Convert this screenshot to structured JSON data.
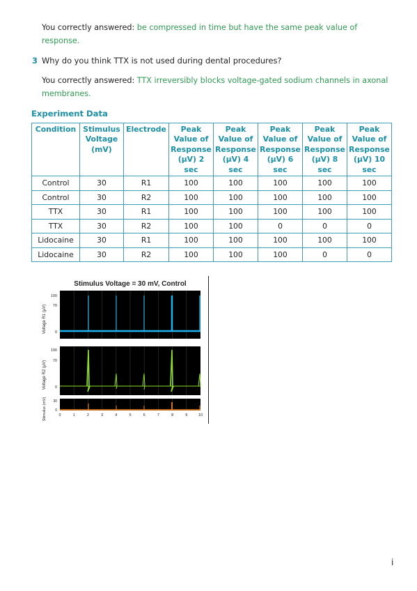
{
  "answer1": {
    "prefix": "You correctly answered: ",
    "answer_line1": "be compressed in time but have the same peak value of",
    "answer_line2": "response."
  },
  "question3": {
    "number": "3",
    "text": "Why do you think TTX is not used during dental procedures?"
  },
  "answer3": {
    "prefix": "You correctly answered: ",
    "answer_line1": "TTX irreversibly blocks voltage-gated sodium channels in axonal",
    "answer_line2": "membranes."
  },
  "section_title": "Experiment Data",
  "table": {
    "headers": [
      "Condition",
      "Stimulus Voltage (mV)",
      "Electrode",
      "Peak Value of Response (µV) 2 sec",
      "Peak Value of Response (µV) 4 sec",
      "Peak Value of Response (µV) 6 sec",
      "Peak Value of Response (µV) 8 sec",
      "Peak Value of Response (µV) 10 sec"
    ],
    "rows": [
      [
        "Control",
        "30",
        "R1",
        "100",
        "100",
        "100",
        "100",
        "100"
      ],
      [
        "Control",
        "30",
        "R2",
        "100",
        "100",
        "100",
        "100",
        "100"
      ],
      [
        "TTX",
        "30",
        "R1",
        "100",
        "100",
        "100",
        "100",
        "100"
      ],
      [
        "TTX",
        "30",
        "R2",
        "100",
        "100",
        "0",
        "0",
        "0"
      ],
      [
        "Lidocaine",
        "30",
        "R1",
        "100",
        "100",
        "100",
        "100",
        "100"
      ],
      [
        "Lidocaine",
        "30",
        "R2",
        "100",
        "100",
        "100",
        "0",
        "0"
      ]
    ]
  },
  "figure": {
    "title": "Stimulus Voltage = 30 mV, Control",
    "panel1_ylabel": "Voltage R1 (µV)",
    "panel2_ylabel": "Voltage R2 (µV)",
    "panel3_ylabel": "Stimulus (mV)",
    "panel1_yticks": [
      "100",
      "70",
      "0"
    ],
    "panel2_yticks": [
      "100",
      "70",
      "0"
    ],
    "panel3_yticks": [
      "30",
      "0"
    ],
    "xticks": [
      "0",
      "1",
      "2",
      "3",
      "4",
      "5",
      "6",
      "7",
      "8",
      "9",
      "10"
    ],
    "colors": {
      "r1": "#1eb4f0",
      "r2": "#8ee02a",
      "stimulus": "#ff8a1e",
      "background": "#000000"
    }
  },
  "page_number": "i"
}
